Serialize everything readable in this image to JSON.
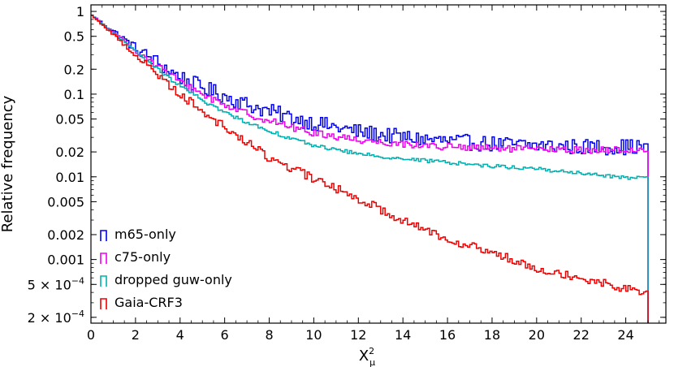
{
  "chart_data": {
    "type": "histogram-step",
    "xlabel": "X",
    "xlabel_sub": "μ",
    "xlabel_sup": "2",
    "ylabel": "Relative frequency",
    "y_scale": "log",
    "xlim": [
      0,
      25.8
    ],
    "ylim": [
      0.00017,
      1.2
    ],
    "x_ticks": [
      0,
      2,
      4,
      6,
      8,
      10,
      12,
      14,
      16,
      18,
      20,
      22,
      24
    ],
    "y_ticks": [
      {
        "value": 1,
        "label": "1"
      },
      {
        "value": 0.5,
        "label": "0.5"
      },
      {
        "value": 0.2,
        "label": "0.2"
      },
      {
        "value": 0.1,
        "label": "0.1"
      },
      {
        "value": 0.05,
        "label": "0.05"
      },
      {
        "value": 0.02,
        "label": "0.02"
      },
      {
        "value": 0.01,
        "label": "0.01"
      },
      {
        "value": 0.005,
        "label": "0.005"
      },
      {
        "value": 0.002,
        "label": "0.002"
      },
      {
        "value": 0.001,
        "label": "0.001"
      },
      {
        "value": 0.0005,
        "label": "5 × 10",
        "exp": "−4"
      },
      {
        "value": 0.0002,
        "label": "2 × 10",
        "exp": "−4"
      }
    ],
    "grid": false,
    "legend_position": "lower-left",
    "bin_width": 0.1,
    "x_end": 25,
    "series": [
      {
        "name": "m65-only",
        "color": "#0000ee",
        "knots": [
          [
            0,
            0.92
          ],
          [
            1,
            0.58
          ],
          [
            2,
            0.36
          ],
          [
            3,
            0.24
          ],
          [
            4,
            0.16
          ],
          [
            5,
            0.12
          ],
          [
            6,
            0.095
          ],
          [
            7,
            0.075
          ],
          [
            8,
            0.062
          ],
          [
            9,
            0.052
          ],
          [
            10,
            0.045
          ],
          [
            12,
            0.035
          ],
          [
            14,
            0.03
          ],
          [
            16,
            0.027
          ],
          [
            18,
            0.025
          ],
          [
            20,
            0.024
          ],
          [
            22,
            0.023
          ],
          [
            25,
            0.023
          ]
        ],
        "noise": 0.22
      },
      {
        "name": "c75-only",
        "color": "#ee00ee",
        "knots": [
          [
            0,
            0.92
          ],
          [
            1,
            0.56
          ],
          [
            2,
            0.34
          ],
          [
            3,
            0.22
          ],
          [
            4,
            0.14
          ],
          [
            5,
            0.1
          ],
          [
            6,
            0.075
          ],
          [
            7,
            0.058
          ],
          [
            8,
            0.048
          ],
          [
            9,
            0.04
          ],
          [
            10,
            0.034
          ],
          [
            12,
            0.028
          ],
          [
            14,
            0.025
          ],
          [
            16,
            0.023
          ],
          [
            18,
            0.022
          ],
          [
            20,
            0.0215
          ],
          [
            22,
            0.021
          ],
          [
            25,
            0.021
          ]
        ],
        "noise": 0.1
      },
      {
        "name": "dropped guw-only",
        "color": "#00b0b0",
        "knots": [
          [
            0,
            0.92
          ],
          [
            1,
            0.55
          ],
          [
            2,
            0.33
          ],
          [
            3,
            0.2
          ],
          [
            4,
            0.125
          ],
          [
            5,
            0.085
          ],
          [
            6,
            0.06
          ],
          [
            7,
            0.046
          ],
          [
            8,
            0.036
          ],
          [
            9,
            0.029
          ],
          [
            10,
            0.024
          ],
          [
            12,
            0.019
          ],
          [
            14,
            0.0165
          ],
          [
            16,
            0.015
          ],
          [
            18,
            0.0135
          ],
          [
            20,
            0.0125
          ],
          [
            22,
            0.011
          ],
          [
            24,
            0.0098
          ],
          [
            25,
            0.0095
          ]
        ],
        "noise": 0.05
      },
      {
        "name": "Gaia-CRF3",
        "color": "#ee0000",
        "knots": [
          [
            0,
            0.92
          ],
          [
            2,
            0.3
          ],
          [
            4,
            0.1
          ],
          [
            6,
            0.04
          ],
          [
            8,
            0.017
          ],
          [
            10,
            0.0095
          ],
          [
            12,
            0.0055
          ],
          [
            14,
            0.003
          ],
          [
            16,
            0.0018
          ],
          [
            18,
            0.0012
          ],
          [
            20,
            0.0008
          ],
          [
            22,
            0.0006
          ],
          [
            24,
            0.00045
          ],
          [
            25,
            0.0004
          ]
        ],
        "noise": 0.12
      }
    ]
  }
}
